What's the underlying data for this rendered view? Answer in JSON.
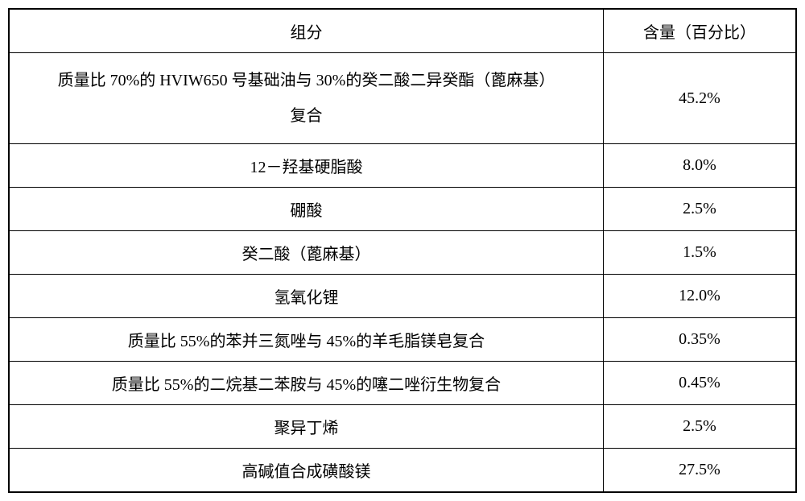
{
  "table": {
    "headers": {
      "component": "组分",
      "amount": "含量（百分比）"
    },
    "rows": [
      {
        "component": "质量比 70%的 HVIW650 号基础油与 30%的癸二酸二异癸酯（蓖麻基）\n复合",
        "amount": "45.2%",
        "multiline": true
      },
      {
        "component": "12－羟基硬脂酸",
        "amount": "8.0%"
      },
      {
        "component": "硼酸",
        "amount": "2.5%"
      },
      {
        "component": "癸二酸（蓖麻基）",
        "amount": "1.5%"
      },
      {
        "component": "氢氧化锂",
        "amount": "12.0%"
      },
      {
        "component": "质量比 55%的苯并三氮唑与 45%的羊毛脂镁皂复合",
        "amount": "0.35%"
      },
      {
        "component": "质量比 55%的二烷基二苯胺与 45%的噻二唑衍生物复合",
        "amount": "0.45%"
      },
      {
        "component": "聚异丁烯",
        "amount": "2.5%"
      },
      {
        "component": "高碱值合成磺酸镁",
        "amount": "27.5%"
      }
    ],
    "styles": {
      "border_color": "#000000",
      "background_color": "#ffffff",
      "text_color": "#000000",
      "font_size": 20,
      "col_component_width": 740,
      "col_amount_width": 240
    }
  }
}
